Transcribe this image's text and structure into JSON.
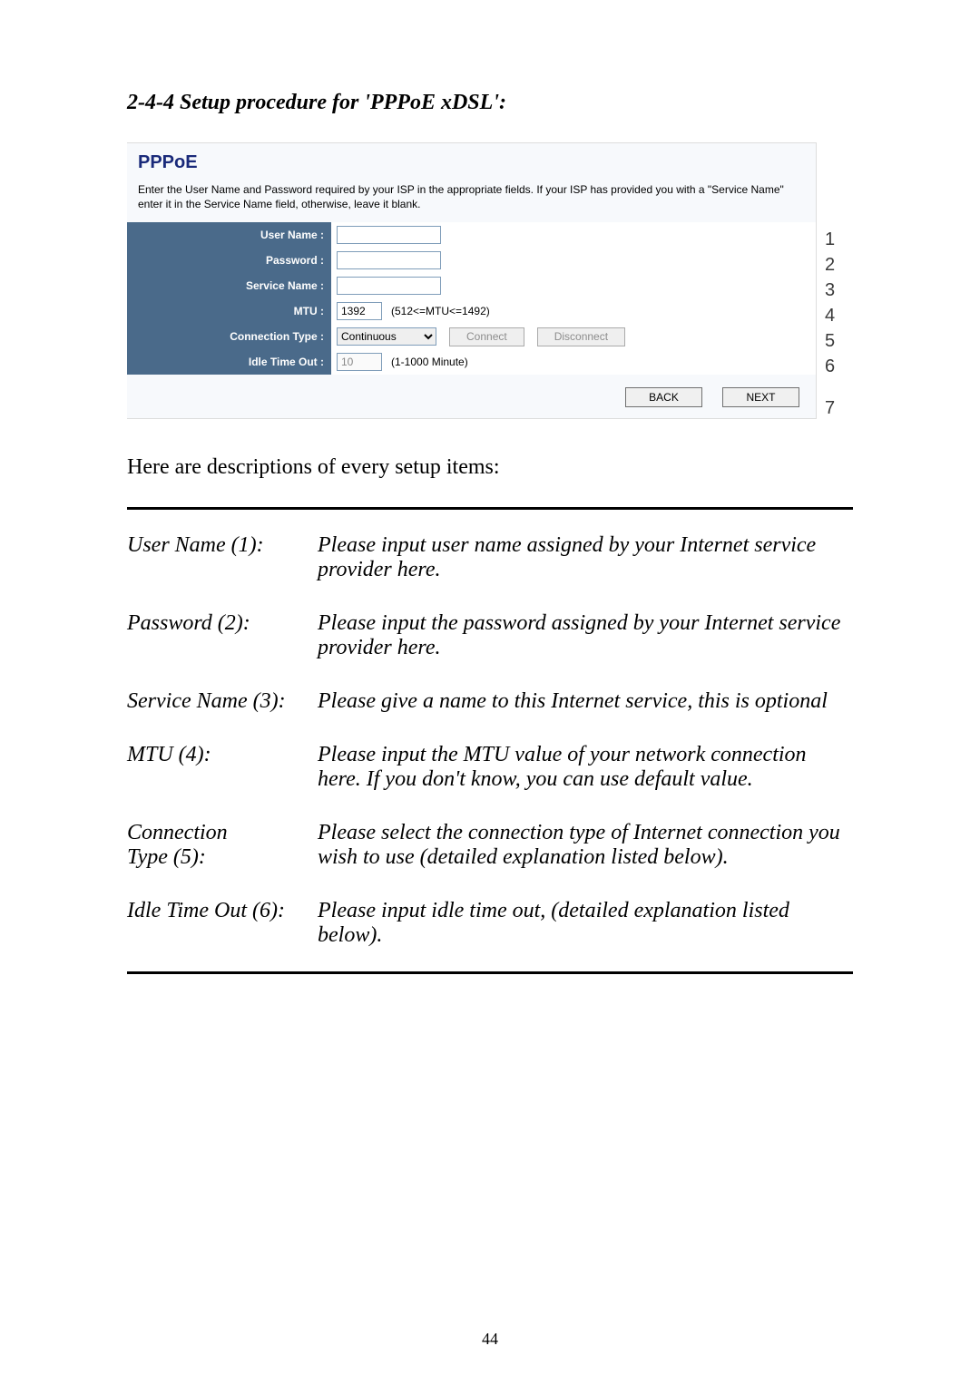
{
  "section_title": "2-4-4 Setup procedure for 'PPPoE xDSL':",
  "pppoe": {
    "title": "PPPoE",
    "description": "Enter the User Name and Password required by your ISP in the appropriate fields. If your ISP has provided you with a \"Service Name\" enter it in the Service Name field, otherwise, leave it blank.",
    "rows": {
      "user_name_label": "User Name :",
      "password_label": "Password :",
      "service_name_label": "Service Name :",
      "mtu_label": "MTU :",
      "mtu_value": "1392",
      "mtu_hint": "(512<=MTU<=1492)",
      "connection_type_label": "Connection Type :",
      "connection_type_value": "Continuous",
      "connect_btn": "Connect",
      "disconnect_btn": "Disconnect",
      "idle_label": "Idle Time Out :",
      "idle_value": "10",
      "idle_hint": "(1-1000 Minute)"
    },
    "nav": {
      "back": "BACK",
      "next": "NEXT"
    },
    "callouts": [
      "1",
      "2",
      "3",
      "4",
      "5",
      "6",
      "7"
    ]
  },
  "intro_sentence": "Here are descriptions of every setup items:",
  "descriptions": [
    {
      "label": "User Name (1):",
      "text": "Please input user name assigned by your Internet service provider here."
    },
    {
      "label": "Password (2):",
      "text": "Please input the password assigned by your Internet service provider here."
    },
    {
      "label": "Service Name (3):",
      "text": "Please give a name to this Internet service, this is optional"
    },
    {
      "label": "MTU (4):",
      "text": "Please input the MTU value of your network connection here. If you don't know, you can use default value."
    },
    {
      "label": "Connection Type (5):",
      "label2": "",
      "text": "Please select the connection type of Internet connection you wish to use (detailed explanation listed below)."
    },
    {
      "label": "Idle Time Out (6):",
      "text": "Please input idle time out, (detailed explanation listed below)."
    }
  ],
  "pagenum": "44"
}
